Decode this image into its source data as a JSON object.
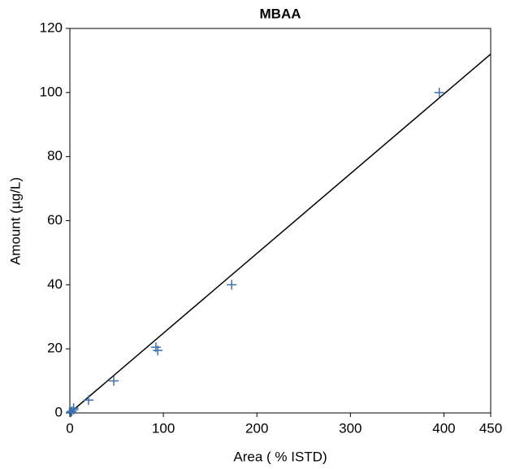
{
  "chart_data": {
    "type": "scatter",
    "title": "MBAA",
    "x_label": "Area ( % ISTD)",
    "y_label": "Amount (µg/L)",
    "points": {
      "x": [
        1,
        2,
        4,
        4,
        20,
        47,
        92,
        94,
        173,
        395
      ],
      "y": [
        0.2,
        0.5,
        1,
        1.5,
        4,
        10,
        20.5,
        19.5,
        40,
        100
      ],
      "color": "#3d72b4"
    },
    "fit": {
      "x": [
        0,
        450
      ],
      "y": [
        0,
        112
      ],
      "color": "#000000"
    },
    "xlim": [
      0,
      450
    ],
    "ylim": [
      0,
      120
    ],
    "xticks": [
      0,
      100,
      200,
      300,
      400,
      450
    ],
    "yticks": [
      0,
      20,
      40,
      60,
      80,
      100,
      120
    ]
  }
}
